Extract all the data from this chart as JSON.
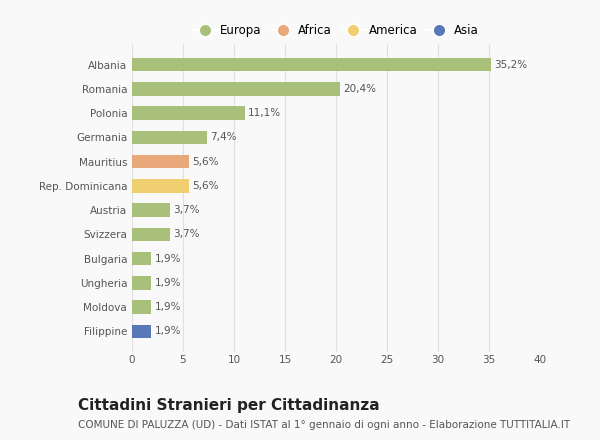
{
  "countries": [
    "Albania",
    "Romania",
    "Polonia",
    "Germania",
    "Mauritius",
    "Rep. Dominicana",
    "Austria",
    "Svizzera",
    "Bulgaria",
    "Ungheria",
    "Moldova",
    "Filippine"
  ],
  "values": [
    35.2,
    20.4,
    11.1,
    7.4,
    5.6,
    5.6,
    3.7,
    3.7,
    1.9,
    1.9,
    1.9,
    1.9
  ],
  "labels": [
    "35,2%",
    "20,4%",
    "11,1%",
    "7,4%",
    "5,6%",
    "5,6%",
    "3,7%",
    "3,7%",
    "1,9%",
    "1,9%",
    "1,9%",
    "1,9%"
  ],
  "colors": [
    "#a8c07a",
    "#a8c07a",
    "#a8c07a",
    "#a8c07a",
    "#e8a87a",
    "#f0cf70",
    "#a8c07a",
    "#a8c07a",
    "#a8c07a",
    "#a8c07a",
    "#a8c07a",
    "#5878b8"
  ],
  "legend_labels": [
    "Europa",
    "Africa",
    "America",
    "Asia"
  ],
  "legend_colors": [
    "#a8c07a",
    "#e8a87a",
    "#f0cf70",
    "#5878b8"
  ],
  "title": "Cittadini Stranieri per Cittadinanza",
  "subtitle": "COMUNE DI PALUZZA (UD) - Dati ISTAT al 1° gennaio di ogni anno - Elaborazione TUTTITALIA.IT",
  "xlim": [
    0,
    40
  ],
  "xticks": [
    0,
    5,
    10,
    15,
    20,
    25,
    30,
    35,
    40
  ],
  "background_color": "#f9f9f9",
  "grid_color": "#e0e0e0",
  "title_fontsize": 11,
  "subtitle_fontsize": 7.5,
  "label_fontsize": 7.5,
  "tick_fontsize": 7.5,
  "bar_height": 0.55
}
